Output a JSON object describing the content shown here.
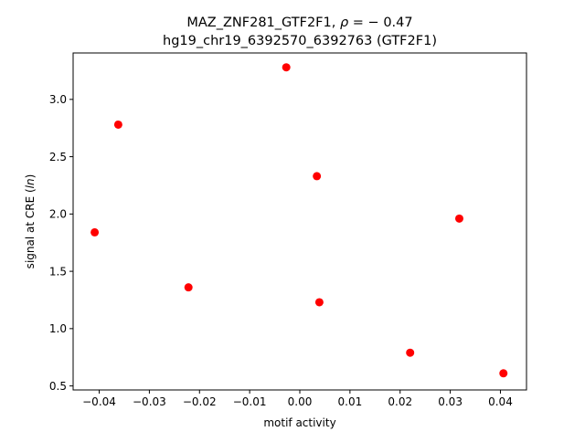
{
  "chart_data": {
    "type": "scatter",
    "title_line1": "MAZ_ZNF281_GTF2F1, ",
    "title_rho_symbol": "ρ",
    "title_rho_value": " = − 0.47",
    "title_line2": "hg19_chr19_6392570_6392763 (GTF2F1)",
    "xlabel": "motif activity",
    "ylabel_prefix": "signal at CRE (",
    "ylabel_italic": "ln",
    "ylabel_suffix": ")",
    "xlim": [
      -0.0452,
      0.0452
    ],
    "ylim": [
      0.465,
      3.405
    ],
    "xticks": [
      -0.04,
      -0.03,
      -0.02,
      -0.01,
      0.0,
      0.01,
      0.02,
      0.03,
      0.04
    ],
    "xtick_labels": [
      "−0.04",
      "−0.03",
      "−0.02",
      "−0.01",
      "0.00",
      "0.01",
      "0.02",
      "0.03",
      "0.04"
    ],
    "yticks": [
      0.5,
      1.0,
      1.5,
      2.0,
      2.5,
      3.0
    ],
    "ytick_labels": [
      "0.5",
      "1.0",
      "1.5",
      "2.0",
      "2.5",
      "3.0"
    ],
    "grid": false,
    "marker_color": "#ff0000",
    "points": [
      {
        "x": -0.0409,
        "y": 1.84
      },
      {
        "x": -0.0362,
        "y": 2.78
      },
      {
        "x": -0.0222,
        "y": 1.36
      },
      {
        "x": -0.0027,
        "y": 3.28
      },
      {
        "x": 0.0034,
        "y": 2.33
      },
      {
        "x": 0.0039,
        "y": 1.23
      },
      {
        "x": 0.022,
        "y": 0.79
      },
      {
        "x": 0.0318,
        "y": 1.96
      },
      {
        "x": 0.0406,
        "y": 0.61
      }
    ]
  }
}
